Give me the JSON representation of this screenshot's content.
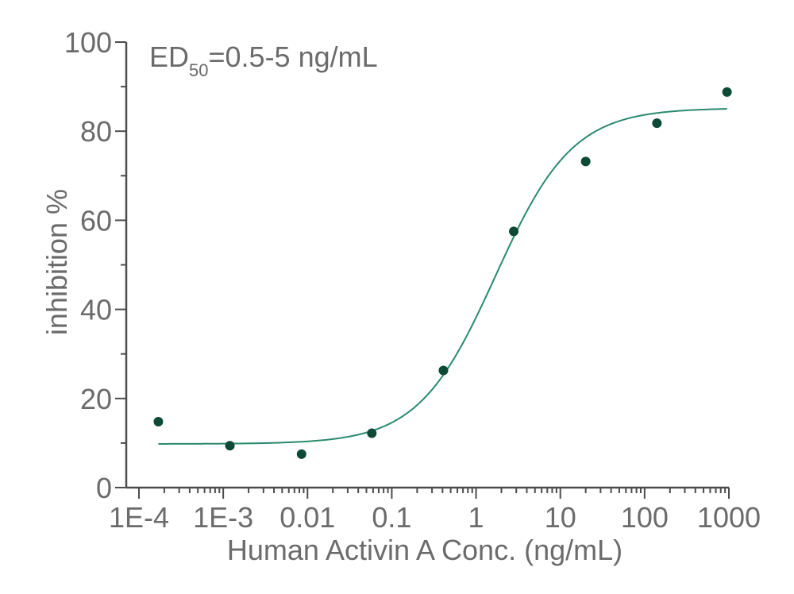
{
  "chart_data": {
    "type": "scatter",
    "annotation": {
      "prefix": "ED",
      "subscript": "50",
      "suffix": "=0.5-5 ng/mL"
    },
    "xlabel": "Human Activin A Conc. (ng/mL)",
    "ylabel": "inhibition %",
    "xscale": "log",
    "xlim": [
      0.0001,
      1000
    ],
    "ylim": [
      0,
      100
    ],
    "x_tick_values": [
      0.0001,
      0.001,
      0.01,
      0.1,
      1,
      10,
      100,
      1000
    ],
    "x_tick_labels": [
      "1E-4",
      "1E-3",
      "0.01",
      "0.1",
      "1",
      "10",
      "100",
      "1000"
    ],
    "y_tick_values": [
      0,
      20,
      40,
      60,
      80,
      100
    ],
    "y_tick_labels": [
      "0",
      "20",
      "40",
      "60",
      "80",
      "100"
    ],
    "grid": false,
    "series": [
      {
        "type": "scatter",
        "x": [
          0.00017,
          0.0012,
          0.0085,
          0.058,
          0.41,
          2.8,
          20,
          140,
          950
        ],
        "y": [
          14.8,
          9.4,
          7.5,
          12.2,
          26.3,
          57.5,
          73.2,
          81.8,
          88.8
        ],
        "color": "#0d4a36"
      },
      {
        "type": "fit-line",
        "model": "4PL",
        "bottom": 9.8,
        "top": 85.2,
        "ec50": 1.7,
        "hill": 0.95,
        "x_range": [
          0.00017,
          950
        ],
        "color": "#2a8a6e"
      }
    ]
  }
}
